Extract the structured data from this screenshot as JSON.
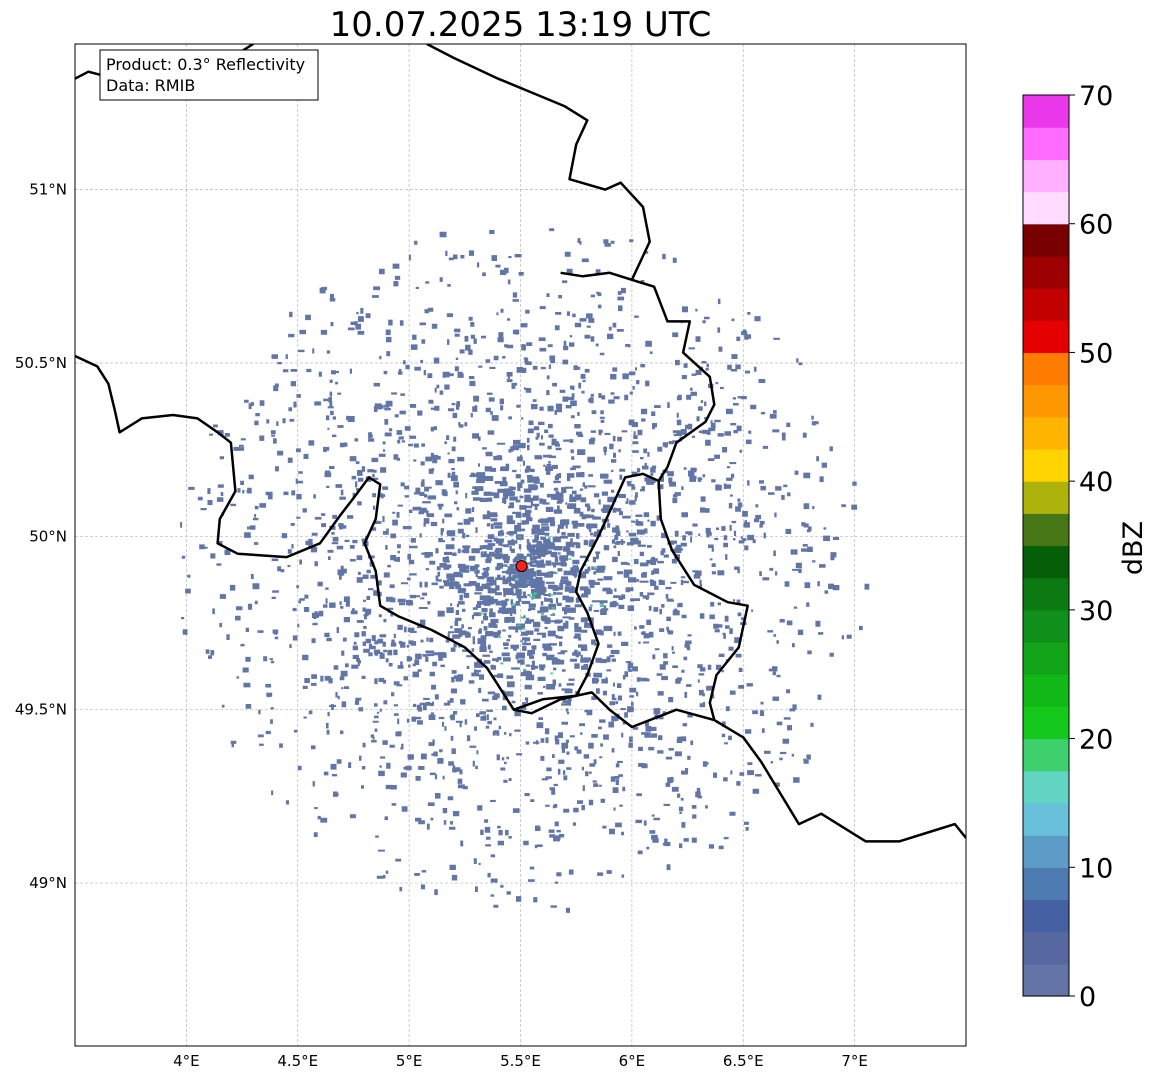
{
  "title": "10.07.2025 13:19 UTC",
  "info_box": {
    "product": "Product: 0.3° Reflectivity",
    "data_source": "Data: RMIB"
  },
  "map": {
    "lon_range": [
      3.5,
      7.5
    ],
    "lat_range": [
      48.53,
      51.42
    ],
    "lon_ticks": [
      {
        "value": 4.0,
        "label": "4°E"
      },
      {
        "value": 4.5,
        "label": "4.5°E"
      },
      {
        "value": 5.0,
        "label": "5°E"
      },
      {
        "value": 5.5,
        "label": "5.5°E"
      },
      {
        "value": 6.0,
        "label": "6°E"
      },
      {
        "value": 6.5,
        "label": "6.5°E"
      },
      {
        "value": 7.0,
        "label": "7°E"
      }
    ],
    "lat_ticks": [
      {
        "value": 51.0,
        "label": "51°N"
      },
      {
        "value": 50.5,
        "label": "50.5°N"
      },
      {
        "value": 50.0,
        "label": "50°N"
      },
      {
        "value": 49.5,
        "label": "49.5°N"
      },
      {
        "value": 49.0,
        "label": "49°N"
      }
    ],
    "radar_site": {
      "lon": 5.505,
      "lat": 49.914,
      "color": "#ff2020"
    },
    "echo_color": "#6176a6",
    "borders": [
      [
        [
          3.5,
          51.32
        ],
        [
          3.56,
          51.34
        ],
        [
          3.62,
          51.33
        ],
        [
          3.68,
          51.36
        ],
        [
          3.75,
          51.33
        ],
        [
          3.85,
          51.29
        ],
        [
          3.95,
          51.31
        ],
        [
          4.05,
          51.33
        ],
        [
          4.1,
          51.38
        ],
        [
          4.2,
          51.38
        ],
        [
          4.3,
          51.42
        ]
      ],
      [
        [
          5.08,
          51.42
        ],
        [
          5.2,
          51.38
        ],
        [
          5.4,
          51.32
        ],
        [
          5.55,
          51.28
        ],
        [
          5.7,
          51.24
        ],
        [
          5.8,
          51.2
        ],
        [
          5.75,
          51.13
        ],
        [
          5.72,
          51.03
        ],
        [
          5.88,
          51.0
        ],
        [
          5.95,
          51.02
        ],
        [
          6.05,
          50.95
        ],
        [
          6.08,
          50.85
        ],
        [
          6.0,
          50.74
        ],
        [
          5.9,
          50.76
        ],
        [
          5.78,
          50.75
        ],
        [
          5.68,
          50.76
        ]
      ],
      [
        [
          6.0,
          50.74
        ],
        [
          6.1,
          50.72
        ],
        [
          6.16,
          50.62
        ],
        [
          6.26,
          50.62
        ],
        [
          6.23,
          50.53
        ],
        [
          6.35,
          50.46
        ],
        [
          6.37,
          50.38
        ],
        [
          6.33,
          50.33
        ],
        [
          6.2,
          50.27
        ],
        [
          6.16,
          50.2
        ],
        [
          6.12,
          50.16
        ]
      ],
      [
        [
          3.5,
          50.52
        ],
        [
          3.6,
          50.49
        ],
        [
          3.65,
          50.44
        ],
        [
          3.68,
          50.36
        ],
        [
          3.7,
          50.3
        ],
        [
          3.8,
          50.34
        ],
        [
          3.94,
          50.35
        ],
        [
          4.05,
          50.34
        ],
        [
          4.14,
          50.3
        ],
        [
          4.2,
          50.27
        ],
        [
          4.22,
          50.13
        ],
        [
          4.15,
          50.05
        ],
        [
          4.14,
          49.98
        ],
        [
          4.23,
          49.95
        ],
        [
          4.45,
          49.94
        ],
        [
          4.6,
          49.98
        ],
        [
          4.69,
          50.06
        ],
        [
          4.75,
          50.11
        ],
        [
          4.82,
          50.17
        ],
        [
          4.87,
          50.15
        ],
        [
          4.85,
          50.05
        ],
        [
          4.8,
          49.98
        ],
        [
          4.85,
          49.9
        ],
        [
          4.87,
          49.8
        ],
        [
          4.95,
          49.77
        ],
        [
          5.1,
          49.73
        ],
        [
          5.25,
          49.68
        ],
        [
          5.35,
          49.62
        ],
        [
          5.47,
          49.5
        ],
        [
          5.6,
          49.53
        ],
        [
          5.75,
          49.54
        ],
        [
          5.82,
          49.55
        ],
        [
          5.9,
          49.5
        ],
        [
          6.0,
          49.45
        ],
        [
          6.2,
          49.5
        ],
        [
          6.37,
          49.47
        ],
        [
          6.5,
          49.42
        ],
        [
          6.58,
          49.35
        ],
        [
          6.75,
          49.17
        ],
        [
          6.85,
          49.2
        ],
        [
          7.05,
          49.12
        ],
        [
          7.2,
          49.12
        ],
        [
          7.35,
          49.15
        ],
        [
          7.45,
          49.17
        ],
        [
          7.5,
          49.13
        ]
      ],
      [
        [
          5.47,
          49.5
        ],
        [
          5.55,
          49.49
        ],
        [
          5.68,
          49.53
        ],
        [
          5.75,
          49.54
        ],
        [
          5.8,
          49.6
        ],
        [
          5.85,
          49.69
        ],
        [
          5.8,
          49.78
        ],
        [
          5.75,
          49.84
        ],
        [
          5.77,
          49.9
        ],
        [
          5.85,
          50.0
        ],
        [
          5.97,
          50.17
        ],
        [
          6.05,
          50.18
        ],
        [
          6.12,
          50.16
        ],
        [
          6.13,
          50.05
        ],
        [
          6.18,
          49.96
        ],
        [
          6.28,
          49.86
        ],
        [
          6.43,
          49.81
        ],
        [
          6.52,
          49.8
        ],
        [
          6.48,
          49.68
        ],
        [
          6.38,
          49.6
        ],
        [
          6.35,
          49.52
        ],
        [
          6.37,
          49.47
        ]
      ]
    ]
  },
  "colorbar": {
    "label": "dBZ",
    "min": 0,
    "max": 70,
    "step": 2.5,
    "ticks": [
      {
        "value": 0,
        "label": "0"
      },
      {
        "value": 10,
        "label": "10"
      },
      {
        "value": 20,
        "label": "20"
      },
      {
        "value": 30,
        "label": "30"
      },
      {
        "value": 40,
        "label": "40"
      },
      {
        "value": 50,
        "label": "50"
      },
      {
        "value": 60,
        "label": "60"
      },
      {
        "value": 70,
        "label": "70"
      }
    ],
    "colors": [
      "#6474a6",
      "#5768a1",
      "#4660a4",
      "#4e7ab2",
      "#5d9cc6",
      "#68c0da",
      "#62d4c2",
      "#3fd06e",
      "#14c81c",
      "#11b818",
      "#11a418",
      "#10901a",
      "#0c7a12",
      "#055e08",
      "#467616",
      "#aeb30c",
      "#ffd400",
      "#ffb400",
      "#ff9800",
      "#ff7c00",
      "#e40000",
      "#c20000",
      "#9c0000",
      "#780000",
      "#ffdcff",
      "#ffb0ff",
      "#ff6cff",
      "#ea38ea"
    ]
  }
}
